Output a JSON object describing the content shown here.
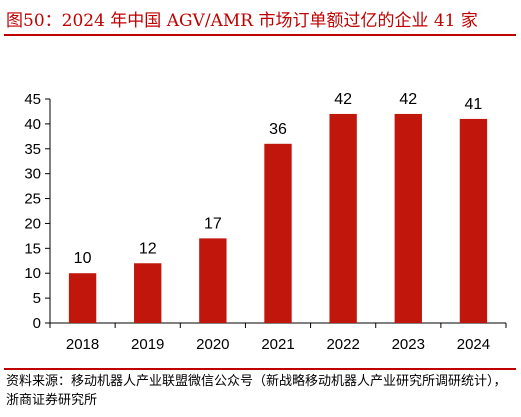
{
  "figure": {
    "title": "图50：2024 年中国 AGV/AMR 市场订单额过亿的企业 41 家",
    "source": "资料来源：移动机器人产业联盟微信公众号（新战略移动机器人产业研究所调研统计），浙商证券研究所"
  },
  "colors": {
    "bar": "#c0160c",
    "title": "#c00000",
    "axis": "#000000"
  },
  "chart_data": {
    "type": "bar",
    "categories": [
      "2018",
      "2019",
      "2020",
      "2021",
      "2022",
      "2023",
      "2024"
    ],
    "values": [
      10,
      12,
      17,
      36,
      42,
      42,
      41
    ],
    "data_labels": [
      "10",
      "12",
      "17",
      "36",
      "42",
      "42",
      "41"
    ],
    "title": "",
    "xlabel": "",
    "ylabel": "",
    "ylim": [
      0,
      45
    ],
    "yticks": [
      "0",
      "5",
      "10",
      "15",
      "20",
      "25",
      "30",
      "35",
      "40",
      "45"
    ],
    "grid": false,
    "legend": "none"
  }
}
